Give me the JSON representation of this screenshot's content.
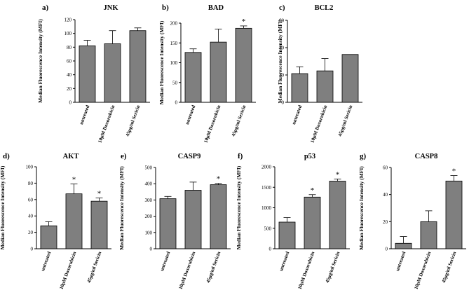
{
  "figure": {
    "ylabel": "Median Fluorescence Intensity (MFI)"
  },
  "colors": {
    "bar": "#7f7f7f",
    "axis": "#000000",
    "bar_stroke": "#000000"
  },
  "chart_data": [
    {
      "type": "bar",
      "panel": "a)",
      "title": "JNK",
      "categories": [
        "untreated",
        "10µM Doxorubicin",
        "45µg/ml Sericin"
      ],
      "values": [
        82,
        85,
        104
      ],
      "errors": [
        8,
        19,
        4
      ],
      "significant": [
        false,
        false,
        false
      ],
      "ylim": [
        0,
        120
      ],
      "yticks": [
        0,
        20,
        40,
        60,
        80,
        100,
        120
      ],
      "ylabel": "Median Fluorescence Intensity (MFI)"
    },
    {
      "type": "bar",
      "panel": "b)",
      "title": "BAD",
      "categories": [
        "untreated",
        "10µM Doxorubicin",
        "45µg/ml Sericin"
      ],
      "values": [
        126,
        152,
        187
      ],
      "errors": [
        9,
        33,
        6
      ],
      "significant": [
        false,
        false,
        true
      ],
      "ylim": [
        0,
        200
      ],
      "yticks": [
        0,
        50,
        100,
        150,
        200
      ],
      "ylabel": "Median Fluorescence Intensity (MFI)"
    },
    {
      "type": "bar",
      "panel": "c)",
      "title": "BCL2",
      "categories": [
        "untreated",
        "10µM Doxorubicin",
        "45µg/ml Sericin"
      ],
      "values": [
        21,
        23,
        35
      ],
      "errors": [
        5,
        9,
        0
      ],
      "significant": [
        false,
        false,
        false
      ],
      "ylim": [
        0,
        60
      ],
      "yticks": [
        0,
        20,
        40,
        60
      ],
      "ylabel": "Median Fluorescence Intensity (MFI)"
    },
    {
      "type": "bar",
      "panel": "d)",
      "title": "AKT",
      "categories": [
        "untreated",
        "10µM Doxorubicin",
        "45µg/ml Sericin"
      ],
      "values": [
        28,
        67,
        58
      ],
      "errors": [
        5,
        12,
        4
      ],
      "significant": [
        false,
        true,
        true
      ],
      "ylim": [
        0,
        100
      ],
      "yticks": [
        0,
        20,
        40,
        60,
        80,
        100
      ],
      "ylabel": "Median Fluorescence Intensity (MFI)"
    },
    {
      "type": "bar",
      "panel": "e)",
      "title": "CASP9",
      "categories": [
        "untreated",
        "10µM Doxorubicin",
        "45µg/ml Sericin"
      ],
      "values": [
        308,
        360,
        394
      ],
      "errors": [
        14,
        50,
        8
      ],
      "significant": [
        false,
        false,
        true
      ],
      "ylim": [
        0,
        500
      ],
      "yticks": [
        0,
        100,
        200,
        300,
        400,
        500
      ],
      "ylabel": "Median Fluorescence Intensity (MFI)"
    },
    {
      "type": "bar",
      "panel": "f)",
      "title": "p53",
      "categories": [
        "untreated",
        "10µM Doxorubicin",
        "45µg/ml Sericin"
      ],
      "values": [
        650,
        1260,
        1650
      ],
      "errors": [
        110,
        60,
        50
      ],
      "significant": [
        false,
        true,
        true
      ],
      "ylim": [
        0,
        2000
      ],
      "yticks": [
        0,
        500,
        1000,
        1500,
        2000
      ],
      "ylabel": "Median Fluorescence Intensity (MFI)"
    },
    {
      "type": "bar",
      "panel": "g)",
      "title": "CASP8",
      "categories": [
        "untreated",
        "10µM Doxorubicin",
        "45µg/ml Sericin"
      ],
      "values": [
        4,
        20,
        50
      ],
      "errors": [
        5,
        8,
        4
      ],
      "significant": [
        false,
        false,
        true
      ],
      "ylim": [
        0,
        60
      ],
      "yticks": [
        0,
        20,
        40,
        60
      ],
      "ylabel": "Median Fluorescence Intensity (MFI)"
    }
  ]
}
